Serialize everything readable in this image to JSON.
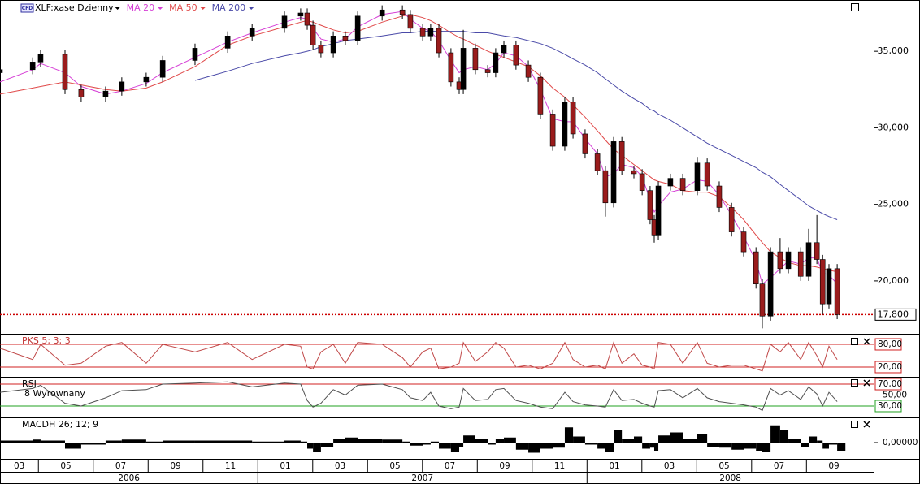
{
  "chart_data": {
    "type": "candlestick",
    "title": "XLF:xase Dzienny",
    "icon_label": "CFD",
    "xlim": [
      2.6,
      34.45
    ],
    "ylim": [
      16.6,
      38.35
    ],
    "yticks": [
      {
        "value": 35,
        "label": "35,000"
      },
      {
        "value": 30,
        "label": "30,000"
      },
      {
        "value": 25,
        "label": "25,000"
      },
      {
        "value": 20,
        "label": "20,000"
      }
    ],
    "last_price": {
      "value": 17.8,
      "label": "17,800"
    },
    "last_price_color": "#cc0000",
    "up_color": "#000000",
    "down_color": "#9a1c1c",
    "xticks": [
      {
        "value": 2,
        "label": "03"
      },
      {
        "value": 4,
        "label": "05"
      },
      {
        "value": 6,
        "label": "07"
      },
      {
        "value": 8,
        "label": "09"
      },
      {
        "value": 10,
        "label": "11"
      },
      {
        "value": 12,
        "label": "01"
      },
      {
        "value": 14,
        "label": "03"
      },
      {
        "value": 16,
        "label": "05"
      },
      {
        "value": 18,
        "label": "07"
      },
      {
        "value": 20,
        "label": "09"
      },
      {
        "value": 22,
        "label": "11"
      },
      {
        "value": 24,
        "label": "01"
      },
      {
        "value": 26,
        "label": "03"
      },
      {
        "value": 28,
        "label": "05"
      },
      {
        "value": 30,
        "label": "07"
      },
      {
        "value": 32,
        "label": "09"
      }
    ],
    "year_ticks": [
      {
        "value": 0,
        "label": "2006"
      },
      {
        "value": 12,
        "label": "2007"
      },
      {
        "value": 24,
        "label": "2008"
      }
    ],
    "x": [
      2.6,
      3.79,
      4.08,
      4.97,
      5.56,
      6.45,
      7.04,
      7.93,
      8.53,
      9.71,
      10.9,
      11.79,
      12.97,
      13.56,
      13.8,
      14.01,
      14.3,
      14.75,
      15.19,
      15.64,
      16.53,
      17.27,
      17.56,
      18.01,
      18.3,
      18.6,
      19.04,
      19.34,
      19.49,
      19.93,
      20.38,
      20.67,
      20.97,
      21.41,
      21.86,
      22.3,
      22.75,
      23.19,
      23.49,
      23.93,
      24.38,
      24.67,
      24.97,
      25.27,
      25.71,
      26.01,
      26.3,
      26.45,
      26.6,
      27.04,
      27.49,
      28.02,
      28.38,
      28.82,
      29.27,
      29.71,
      30.16,
      30.39,
      30.69,
      31.04,
      31.34,
      31.79,
      32.08,
      32.38,
      32.59,
      32.82,
      33.12
    ],
    "open": [
      33.6,
      33.8,
      34.3,
      34.8,
      32.5,
      32.0,
      32.4,
      33.0,
      33.3,
      34.4,
      35.2,
      36.0,
      36.5,
      37.3,
      37.5,
      36.7,
      35.4,
      34.9,
      36.0,
      35.7,
      37.3,
      37.7,
      37.4,
      36.5,
      36.0,
      36.5,
      34.9,
      33.0,
      32.5,
      35.2,
      33.8,
      33.6,
      34.9,
      35.4,
      34.1,
      33.3,
      30.9,
      28.8,
      31.7,
      29.6,
      28.3,
      27.2,
      25.1,
      29.1,
      27.2,
      27.0,
      25.9,
      24.0,
      23.0,
      26.2,
      26.7,
      25.9,
      27.7,
      26.2,
      24.8,
      23.2,
      21.9,
      19.8,
      17.7,
      21.9,
      20.8,
      21.9,
      20.3,
      22.5,
      21.4,
      18.5,
      20.8
    ],
    "high": [
      34.1,
      34.6,
      35.1,
      35.1,
      32.8,
      32.7,
      33.3,
      33.6,
      34.7,
      35.5,
      36.3,
      36.8,
      37.6,
      37.8,
      37.8,
      37.0,
      35.7,
      36.3,
      36.3,
      37.6,
      38.0,
      38.0,
      37.7,
      36.8,
      36.8,
      36.8,
      35.2,
      33.3,
      36.4,
      35.5,
      34.1,
      35.2,
      35.7,
      35.7,
      34.4,
      33.6,
      31.2,
      32.0,
      32.0,
      29.9,
      28.6,
      27.5,
      29.4,
      29.4,
      27.5,
      27.3,
      26.2,
      24.3,
      26.5,
      27.0,
      27.0,
      28.1,
      28.0,
      26.5,
      25.1,
      23.5,
      22.2,
      20.1,
      22.2,
      22.8,
      22.2,
      22.2,
      23.4,
      24.3,
      21.7,
      21.1,
      21.1
    ],
    "low": [
      33.3,
      33.5,
      34.0,
      32.2,
      31.7,
      31.7,
      32.1,
      32.7,
      33.0,
      34.1,
      34.9,
      35.7,
      36.2,
      37.0,
      36.4,
      35.1,
      34.6,
      34.6,
      35.4,
      35.4,
      37.0,
      37.1,
      36.2,
      35.7,
      35.7,
      34.6,
      32.7,
      32.2,
      32.2,
      33.5,
      33.3,
      33.3,
      34.6,
      33.8,
      33.0,
      30.6,
      28.5,
      28.5,
      29.3,
      28.0,
      26.9,
      24.2,
      24.8,
      26.9,
      26.7,
      25.6,
      23.7,
      22.5,
      22.7,
      25.9,
      25.6,
      25.6,
      25.9,
      24.5,
      22.9,
      21.6,
      19.5,
      16.9,
      17.4,
      20.5,
      20.5,
      20.0,
      20.0,
      21.1,
      17.8,
      18.2,
      17.5
    ],
    "close": [
      33.8,
      34.3,
      34.8,
      32.5,
      32.0,
      32.4,
      33.0,
      33.3,
      34.4,
      35.2,
      36.0,
      36.5,
      37.3,
      37.5,
      36.7,
      35.4,
      34.9,
      36.0,
      35.7,
      37.3,
      37.7,
      37.4,
      36.5,
      36.0,
      36.5,
      34.9,
      33.0,
      32.5,
      35.2,
      33.8,
      33.6,
      34.9,
      35.4,
      34.1,
      33.3,
      30.9,
      28.8,
      31.7,
      29.6,
      28.3,
      27.2,
      25.1,
      29.1,
      27.2,
      27.0,
      25.9,
      24.0,
      23.0,
      26.2,
      26.7,
      25.9,
      27.7,
      26.2,
      24.8,
      23.2,
      21.9,
      19.8,
      17.7,
      21.9,
      20.8,
      21.9,
      20.3,
      22.5,
      21.4,
      18.5,
      20.8,
      17.8
    ],
    "series": [
      {
        "name": "MA 20",
        "color": "#d640d6",
        "values": [
          33.0,
          33.8,
          34.2,
          33.6,
          32.7,
          32.2,
          32.4,
          32.9,
          33.6,
          34.6,
          35.6,
          36.2,
          36.9,
          37.2,
          37.1,
          36.5,
          35.8,
          35.6,
          35.8,
          36.6,
          37.4,
          37.6,
          37.1,
          36.5,
          36.3,
          35.7,
          34.4,
          33.6,
          33.8,
          34.0,
          33.8,
          34.2,
          34.9,
          34.7,
          34.0,
          32.5,
          30.6,
          30.4,
          30.4,
          29.3,
          28.3,
          26.8,
          27.0,
          27.6,
          27.4,
          26.8,
          25.3,
          24.5,
          24.9,
          25.8,
          26.0,
          26.6,
          26.5,
          25.6,
          24.3,
          22.9,
          21.3,
          19.8,
          20.2,
          20.8,
          21.3,
          21.1,
          21.5,
          21.5,
          20.5,
          20.4,
          19.8
        ]
      },
      {
        "name": "MA 50",
        "color": "#e04848",
        "values": [
          32.2,
          32.6,
          32.7,
          33.0,
          32.8,
          32.5,
          32.4,
          32.6,
          33.0,
          34.0,
          35.4,
          36.0,
          36.6,
          36.9,
          37.0,
          36.9,
          36.7,
          36.4,
          36.2,
          36.3,
          36.9,
          37.3,
          37.4,
          37.2,
          37.0,
          36.7,
          36.2,
          35.9,
          35.8,
          35.4,
          35.0,
          34.8,
          34.6,
          34.3,
          34.0,
          33.4,
          32.6,
          32.0,
          31.5,
          30.7,
          29.8,
          29.2,
          28.6,
          28.2,
          27.6,
          27.2,
          26.8,
          26.6,
          26.5,
          26.3,
          25.9,
          25.8,
          25.8,
          25.5,
          24.8,
          24.0,
          23.0,
          22.5,
          21.9,
          21.5,
          21.2,
          21.0,
          21.0,
          20.9,
          20.8,
          20.7,
          20.6
        ]
      },
      {
        "name": "MA 200",
        "color": "#4a4aa8",
        "values": [
          null,
          null,
          null,
          null,
          null,
          null,
          null,
          null,
          null,
          33.1,
          33.7,
          34.2,
          34.7,
          34.9,
          35.0,
          35.1,
          35.3,
          35.5,
          35.7,
          35.8,
          36.0,
          36.2,
          36.2,
          36.3,
          36.3,
          36.3,
          36.3,
          36.3,
          36.3,
          36.2,
          36.2,
          36.1,
          36.0,
          35.9,
          35.7,
          35.5,
          35.2,
          34.8,
          34.5,
          34.1,
          33.6,
          33.2,
          32.8,
          32.4,
          31.9,
          31.6,
          31.2,
          31.1,
          30.9,
          30.5,
          30.0,
          29.4,
          29.0,
          28.6,
          28.2,
          27.8,
          27.4,
          27.1,
          26.8,
          26.3,
          25.9,
          25.3,
          24.9,
          24.6,
          24.4,
          24.2,
          24.0
        ]
      }
    ],
    "panels": [
      {
        "type": "line",
        "title": "PKS 5; 3; 3",
        "title_color": "#c03030",
        "color": "#c04848",
        "ylim": [
          -3.6,
          105.7
        ],
        "yticks": [
          {
            "value": 80,
            "label": "80,00"
          },
          {
            "value": 20,
            "label": "20,00"
          }
        ],
        "level_colors": [
          "#d02020",
          "#d02020"
        ],
        "values": [
          70,
          40,
          80,
          25,
          30,
          75,
          85,
          30,
          80,
          60,
          85,
          40,
          80,
          75,
          20,
          15,
          60,
          80,
          30,
          85,
          80,
          45,
          20,
          60,
          70,
          15,
          20,
          30,
          85,
          35,
          60,
          85,
          70,
          20,
          25,
          15,
          30,
          85,
          40,
          20,
          25,
          15,
          85,
          30,
          55,
          25,
          20,
          15,
          85,
          80,
          30,
          85,
          30,
          20,
          25,
          25,
          15,
          10,
          80,
          60,
          85,
          40,
          85,
          50,
          20,
          75,
          40
        ]
      },
      {
        "type": "line",
        "title": "RSI",
        "subtitle": "8 Wyrownany",
        "title_color": "#000000",
        "color": "#505050",
        "ylim": [
          10.7,
          81.9
        ],
        "yticks": [
          {
            "value": 70,
            "label": "70,00"
          },
          {
            "value": 50,
            "label": "50,00"
          },
          {
            "value": 30,
            "label": "30,00"
          }
        ],
        "level_colors": [
          "#d02020",
          null,
          "#20a020"
        ],
        "values": [
          55,
          62,
          68,
          35,
          30,
          45,
          58,
          60,
          70,
          72,
          74,
          65,
          72,
          70,
          40,
          28,
          35,
          60,
          50,
          68,
          70,
          60,
          45,
          40,
          55,
          30,
          25,
          28,
          62,
          40,
          42,
          60,
          62,
          40,
          35,
          28,
          25,
          55,
          38,
          32,
          30,
          28,
          60,
          40,
          42,
          35,
          30,
          28,
          58,
          60,
          45,
          62,
          45,
          38,
          35,
          32,
          28,
          22,
          62,
          50,
          58,
          42,
          65,
          52,
          30,
          55,
          38
        ]
      },
      {
        "type": "bar",
        "title": "MACDH 26; 12; 9",
        "title_color": "#000000",
        "color": "#000000",
        "ylim": [
          -0.8,
          1.2
        ],
        "yticks": [
          {
            "value": 0,
            "label": "0,00000"
          }
        ],
        "level_colors": [
          null
        ],
        "values": [
          0.1,
          0.15,
          0.1,
          -0.3,
          -0.1,
          0.1,
          0.15,
          0.05,
          0.1,
          0.1,
          0.1,
          0.05,
          0.1,
          0.05,
          -0.3,
          -0.45,
          -0.2,
          0.2,
          0.25,
          0.2,
          0.15,
          0.05,
          -0.15,
          -0.1,
          0.05,
          -0.3,
          -0.45,
          -0.2,
          0.35,
          0.2,
          -0.1,
          0.2,
          0.25,
          -0.35,
          -0.5,
          -0.3,
          -0.25,
          0.75,
          0.3,
          -0.1,
          -0.3,
          -0.45,
          0.6,
          0.2,
          0.3,
          -0.3,
          -0.25,
          -0.4,
          0.35,
          0.5,
          0.2,
          0.4,
          -0.2,
          -0.25,
          -0.35,
          -0.3,
          -0.4,
          -0.45,
          0.85,
          0.6,
          0.2,
          -0.2,
          0.3,
          0.1,
          -0.3,
          -0.1,
          -0.4
        ]
      }
    ]
  }
}
